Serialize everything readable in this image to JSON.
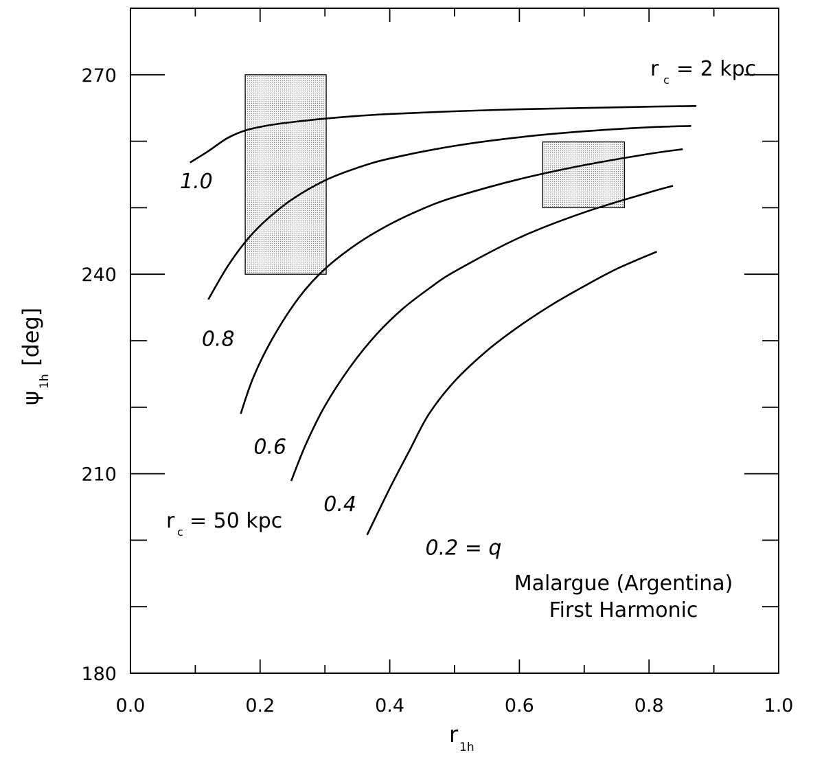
{
  "chart_data": {
    "type": "line",
    "xlabel": "r",
    "xlabel_sub": "1h",
    "ylabel": "ψ",
    "ylabel_sub": "1h",
    "ylabel_unit": "[deg]",
    "xlim": [
      0.0,
      1.0
    ],
    "ylim": [
      180,
      280
    ],
    "x_ticks": [
      0.0,
      0.2,
      0.4,
      0.6,
      0.8,
      1.0
    ],
    "x_tick_labels": [
      "0.0",
      "0.2",
      "0.4",
      "0.6",
      "0.8",
      "1.0"
    ],
    "y_ticks": [
      180,
      210,
      240,
      270
    ],
    "y_tick_labels": [
      "180",
      "210",
      "240",
      "270"
    ],
    "y_minor_step": 10,
    "x_minor_step": 0.1,
    "grid": false,
    "series": [
      {
        "name": "1.0",
        "x": [
          0.092,
          0.12,
          0.15,
          0.18,
          0.22,
          0.26,
          0.3,
          0.35,
          0.4,
          0.5,
          0.6,
          0.7,
          0.8,
          0.873
        ],
        "y": [
          256.8,
          258.5,
          260.5,
          261.7,
          262.5,
          263.0,
          263.4,
          263.8,
          264.1,
          264.5,
          264.8,
          265.0,
          265.2,
          265.3
        ]
      },
      {
        "name": "0.8",
        "x": [
          0.12,
          0.15,
          0.18,
          0.21,
          0.25,
          0.3,
          0.35,
          0.4,
          0.5,
          0.6,
          0.7,
          0.8,
          0.865
        ],
        "y": [
          236.2,
          241.2,
          245.2,
          248.2,
          251.3,
          254.1,
          256.0,
          257.4,
          259.3,
          260.6,
          261.5,
          262.1,
          262.3
        ]
      },
      {
        "name": "0.6",
        "x": [
          0.17,
          0.19,
          0.22,
          0.26,
          0.3,
          0.35,
          0.4,
          0.45,
          0.5,
          0.6,
          0.7,
          0.8,
          0.852
        ],
        "y": [
          219.0,
          224.6,
          230.5,
          236.5,
          240.8,
          244.6,
          247.5,
          249.8,
          251.6,
          254.3,
          256.4,
          258.1,
          258.8
        ]
      },
      {
        "name": "0.4",
        "x": [
          0.248,
          0.27,
          0.3,
          0.34,
          0.38,
          0.42,
          0.46,
          0.5,
          0.6,
          0.7,
          0.8,
          0.837
        ],
        "y": [
          208.9,
          214.3,
          220.2,
          226.2,
          231.0,
          234.8,
          237.8,
          240.4,
          245.5,
          249.3,
          252.3,
          253.3
        ]
      },
      {
        "name": "0.2 = q",
        "x": [
          0.365,
          0.4,
          0.43,
          0.46,
          0.5,
          0.55,
          0.6,
          0.65,
          0.7,
          0.75,
          0.812
        ],
        "y": [
          200.8,
          207.8,
          213.4,
          218.9,
          223.9,
          228.5,
          232.2,
          235.4,
          238.2,
          240.8,
          243.4
        ]
      }
    ],
    "regions": [
      {
        "x": [
          0.177,
          0.302
        ],
        "y": [
          240,
          270
        ]
      },
      {
        "x": [
          0.636,
          0.762
        ],
        "y": [
          250.0,
          259.9
        ]
      }
    ],
    "annotations": {
      "rc_top_main": "r",
      "rc_top_sub": "c",
      "rc_top_value": "= 2 kpc",
      "rc_bottom_main": "r",
      "rc_bottom_sub": "c",
      "rc_bottom_value": "= 50 kpc",
      "site_line1": "Malargue (Argentina)",
      "site_line2": "First Harmonic"
    }
  }
}
